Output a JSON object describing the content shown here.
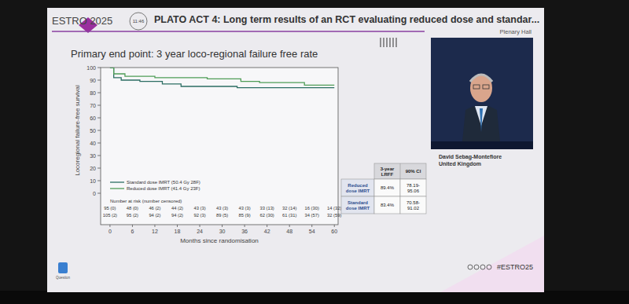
{
  "header": {
    "logo": "ESTRO 2025",
    "time": "11:46",
    "title": "PLATO ACT 4: Long term results of an RCT evaluating reduced dose and standar...",
    "room": "Plenary Hall"
  },
  "chart_data": {
    "type": "line",
    "line_style": "step",
    "title": "Primary end point: 3 year loco-regional failure free rate",
    "x_label": "Months since randomisation",
    "y_label": "Locoregional failure-free survival",
    "xlim": [
      -2.5,
      61
    ],
    "ylim": [
      -25,
      100
    ],
    "xticks": [
      0,
      6,
      12,
      18,
      24,
      30,
      36,
      42,
      48,
      54,
      60
    ],
    "yticks": [
      0,
      10,
      20,
      30,
      40,
      50,
      60,
      70,
      80,
      90,
      100
    ],
    "legend": "lower left",
    "series": [
      {
        "name": "Standard dose IMRT (50.4 Gy 28F)",
        "color": "#2c6e63",
        "x": [
          0,
          1,
          3,
          8,
          14,
          19,
          34,
          60
        ],
        "values": [
          100,
          92,
          90,
          89,
          87,
          85,
          84,
          84
        ]
      },
      {
        "name": "Reduced dose IMRT (41.4 Gy 23F)",
        "color": "#4f9d57",
        "x": [
          0,
          1,
          4,
          12,
          26,
          35,
          40,
          52,
          60
        ],
        "values": [
          100,
          95,
          93,
          92,
          91,
          89,
          88,
          86,
          86
        ]
      }
    ]
  },
  "risk_table": {
    "title": "Number at risk (number censored)",
    "rows": [
      [
        "95 (0)",
        "48 (0)",
        "46 (2)",
        "44 (2)",
        "43 (3)",
        "43 (3)",
        "43 (3)",
        "33 (13)",
        "32 (14)",
        "16 (30)",
        "14 (32)"
      ],
      [
        "105 (2)",
        "95 (2)",
        "94 (2)",
        "94 (2)",
        "92 (3)",
        "89 (5)",
        "85 (9)",
        "62 (30)",
        "61 (31)",
        "34 (57)",
        "32 (59)"
      ]
    ]
  },
  "results_table": {
    "columns": [
      "3-year LRFF",
      "90% CI"
    ],
    "rows": [
      {
        "label": "Reduced dose IMRT",
        "lrff": "89.4%",
        "ci": "78.19-95.06"
      },
      {
        "label": "Standard dose IMRT",
        "lrff": "83.4%",
        "ci": "70.58-91.02"
      }
    ]
  },
  "speaker": {
    "name": "David Sebag-Montefiore",
    "country": "United Kingdom"
  },
  "footer": {
    "hashtag": "#ESTRO25",
    "question": "Question"
  }
}
